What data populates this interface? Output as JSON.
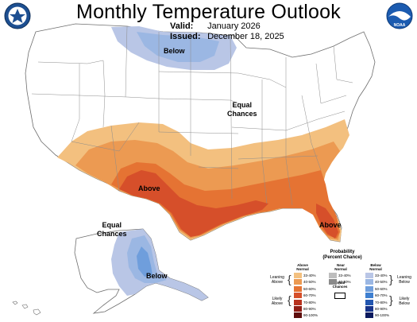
{
  "header": {
    "title": "Monthly Temperature Outlook",
    "valid_label": "Valid:",
    "valid_value": "January 2026",
    "issued_label": "Issued:",
    "issued_value": "December 18, 2025"
  },
  "logos": {
    "left_icon": "doc-seal-icon",
    "right_icon": "noaa-logo-icon",
    "noaa_text": "NOAA"
  },
  "map_labels": {
    "below_north": "Below",
    "equal_main_line1": "Equal",
    "equal_main_line2": "Chances",
    "above_west": "Above",
    "above_florida": "Above",
    "equal_alaska_line1": "Equal",
    "equal_alaska_line2": "Chances",
    "below_alaska": "Below"
  },
  "colors": {
    "above_33_40": "#f3c07f",
    "above_40_50": "#ec9a52",
    "above_50_60": "#e57333",
    "above_60_70": "#d64f2a",
    "above_70_80": "#b8331f",
    "above_80_90": "#8f1d15",
    "above_90_100": "#5e0e0c",
    "below_33_40": "#b9c6e6",
    "below_40_50": "#9bb7e3",
    "below_50_60": "#6f9edc",
    "below_60_70": "#3e7fd0",
    "below_70_80": "#2256b0",
    "below_80_90": "#16338a",
    "below_90_100": "#0c1a5e",
    "near_33_40": "#bdbdbd",
    "near_40_50": "#8a8a8a"
  },
  "legend": {
    "title_line1": "Probability",
    "title_line2": "(Percent Chance)",
    "above_head_1": "Above",
    "above_head_2": "Normal",
    "near_head_1": "Near",
    "near_head_2": "Normal",
    "below_head_1": "Below",
    "below_head_2": "Normal",
    "leaning_above_1": "Leaning",
    "leaning_above_2": "Above",
    "likely_above_1": "Likely",
    "likely_above_2": "Above",
    "leaning_below_1": "Leaning",
    "leaning_below_2": "Below",
    "likely_below_1": "Likely",
    "likely_below_2": "Below",
    "equal_1": "Equal",
    "equal_2": "Chances",
    "above_ranges": [
      "33-40%",
      "40-50%",
      "50-60%",
      "60-70%",
      "70-80%",
      "80-90%",
      "90-100%"
    ],
    "near_ranges": [
      "33-40%",
      "40-50%"
    ],
    "below_ranges": [
      "33-40%",
      "40-50%",
      "50-60%",
      "60-70%",
      "70-80%",
      "80-90%",
      "90-100%"
    ]
  }
}
